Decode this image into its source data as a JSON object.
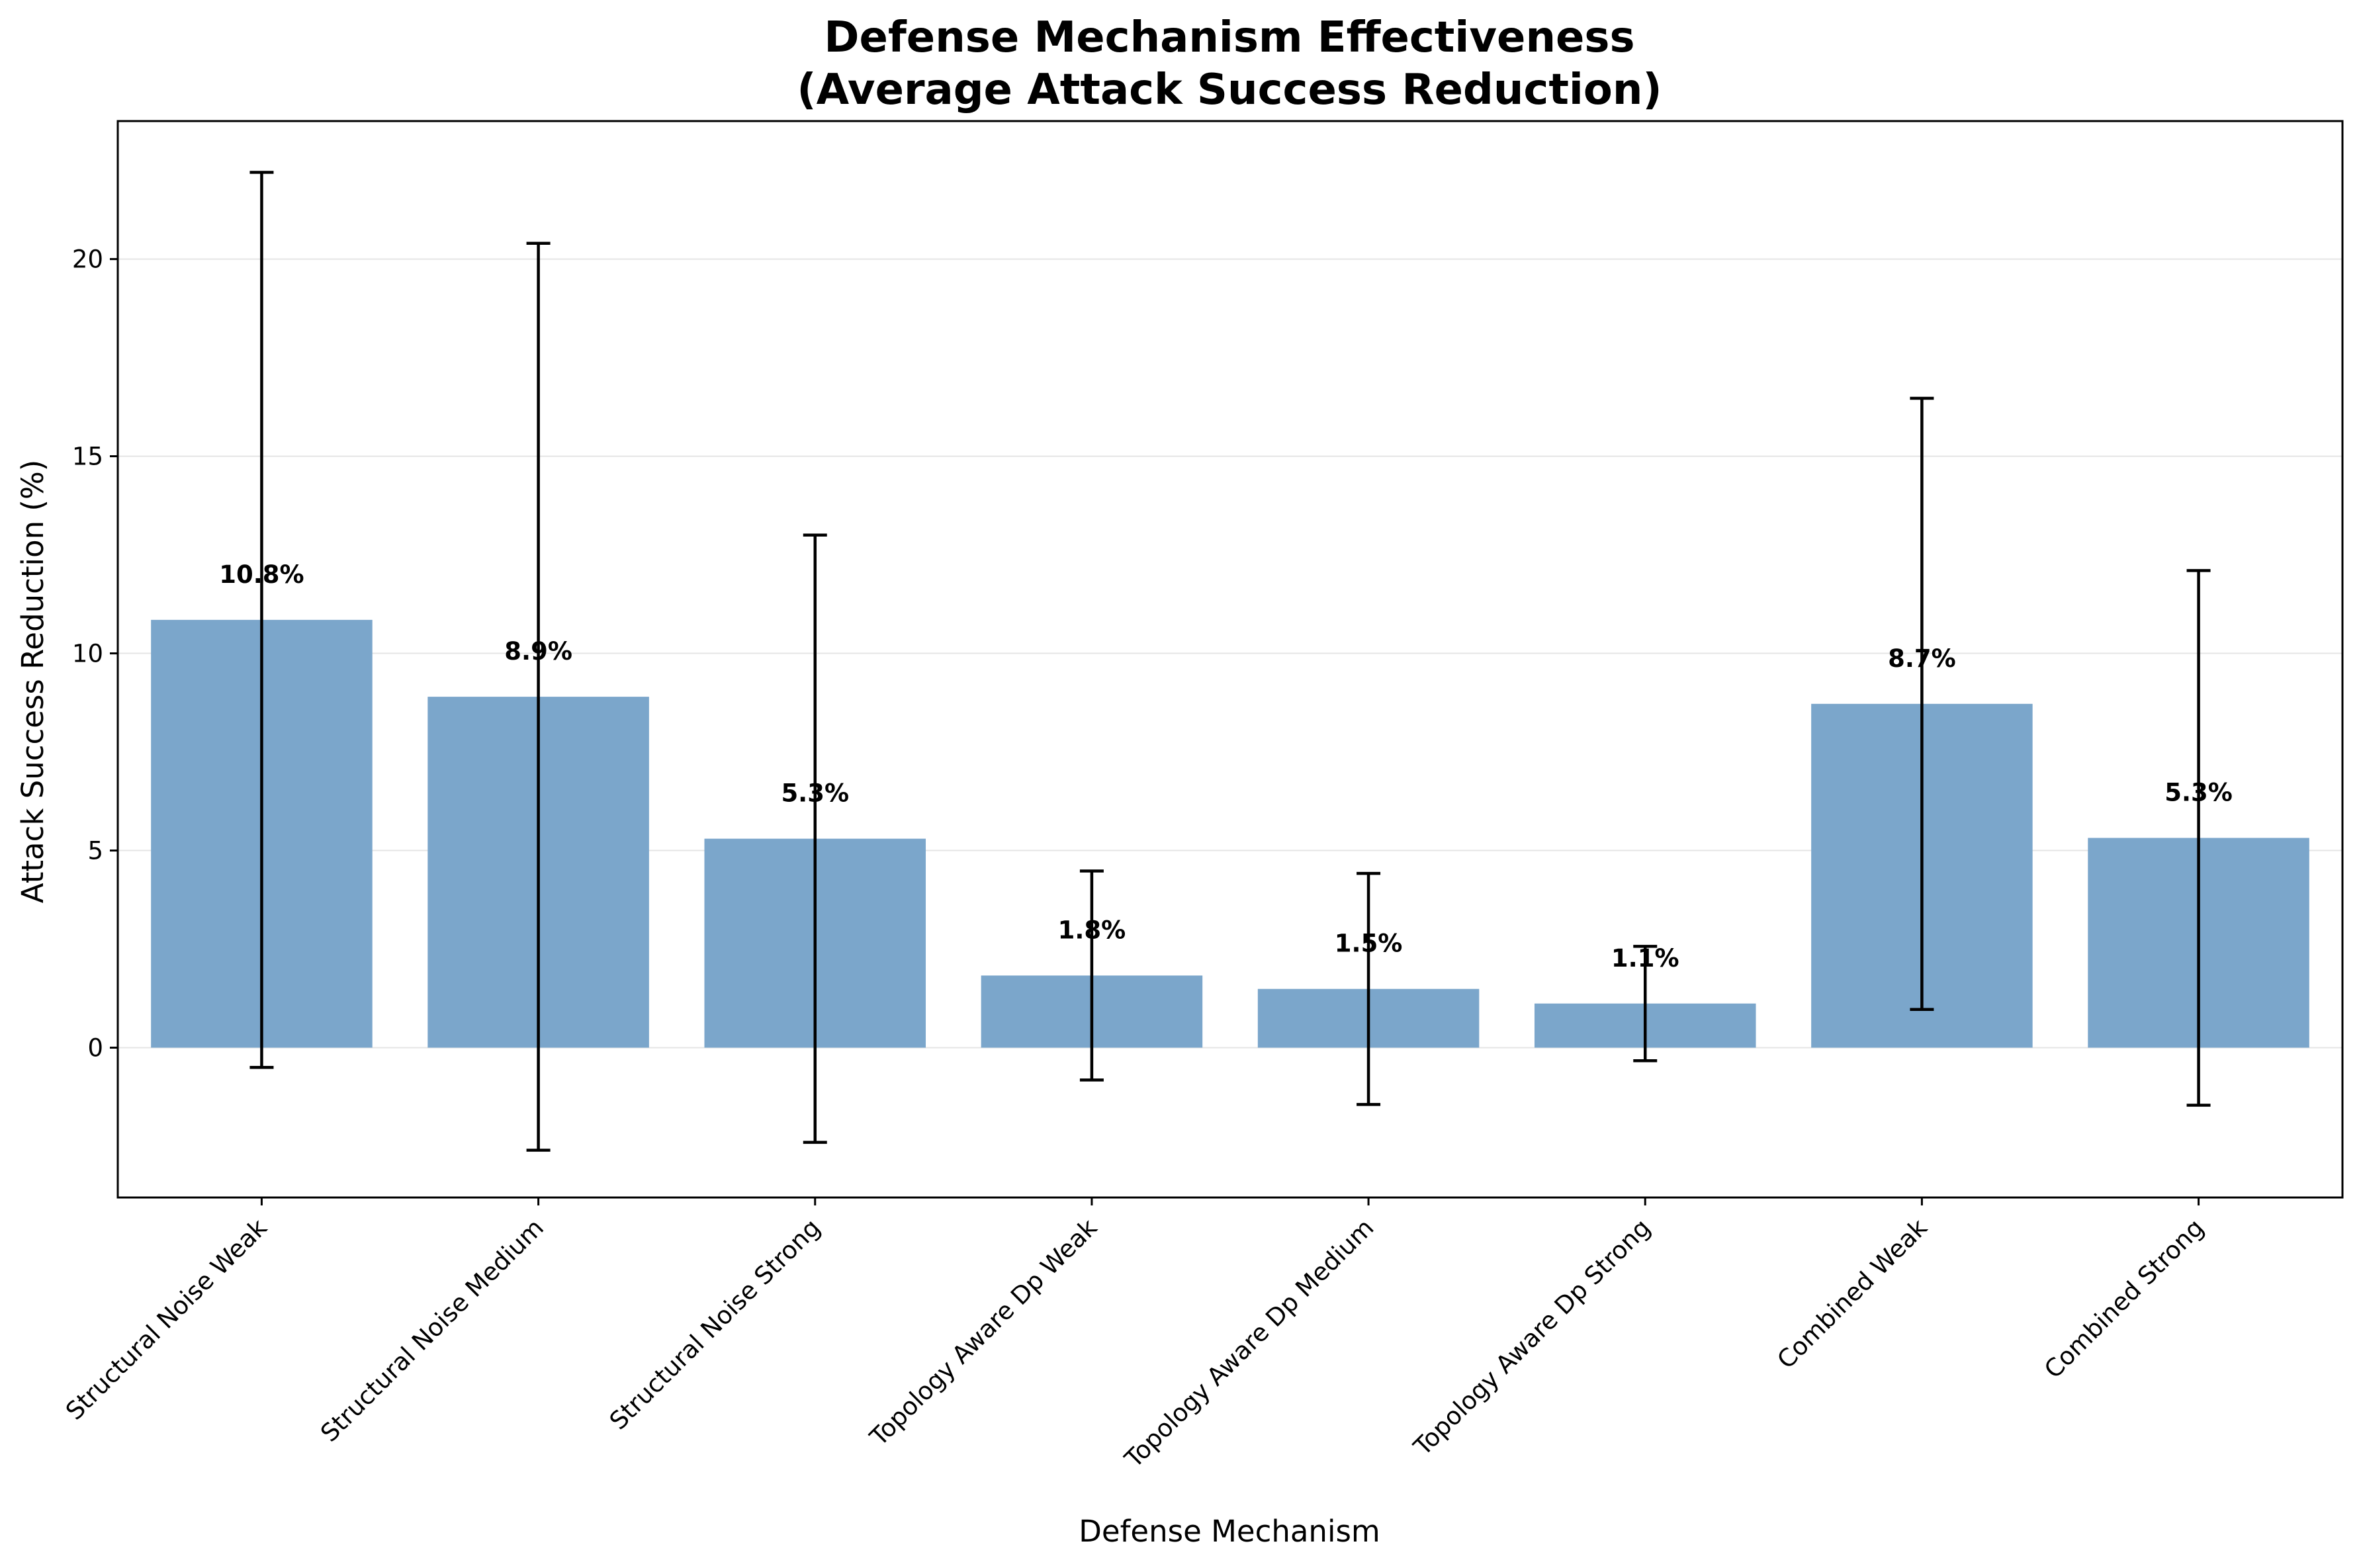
{
  "chart_data": {
    "type": "bar",
    "title_lines": [
      "Defense Mechanism Effectiveness",
      "(Average Attack Success Reduction)"
    ],
    "xlabel": "Defense Mechanism",
    "ylabel": "Attack Success Reduction (%)",
    "ylim": [
      -3.8,
      23.5
    ],
    "yticks": [
      0,
      5,
      10,
      15,
      20
    ],
    "grid": "y",
    "categories": [
      "Structural Noise Weak",
      "Structural Noise Medium",
      "Structural Noise Strong",
      "Topology Aware Dp Weak",
      "Topology Aware Dp Medium",
      "Topology Aware Dp Strong",
      "Combined Weak",
      "Combined Strong"
    ],
    "values": [
      10.85,
      8.9,
      5.3,
      1.83,
      1.49,
      1.12,
      8.72,
      5.32
    ],
    "value_labels": [
      "10.8%",
      "8.9%",
      "5.3%",
      "1.8%",
      "1.5%",
      "1.1%",
      "8.7%",
      "5.3%"
    ],
    "error": [
      11.35,
      11.5,
      7.7,
      2.65,
      2.93,
      1.45,
      7.75,
      6.78
    ],
    "colors": {
      "bar": "#7ba6cb",
      "errorbar": "#000000",
      "grid": "#e5e5e5",
      "axis": "#000000"
    }
  }
}
